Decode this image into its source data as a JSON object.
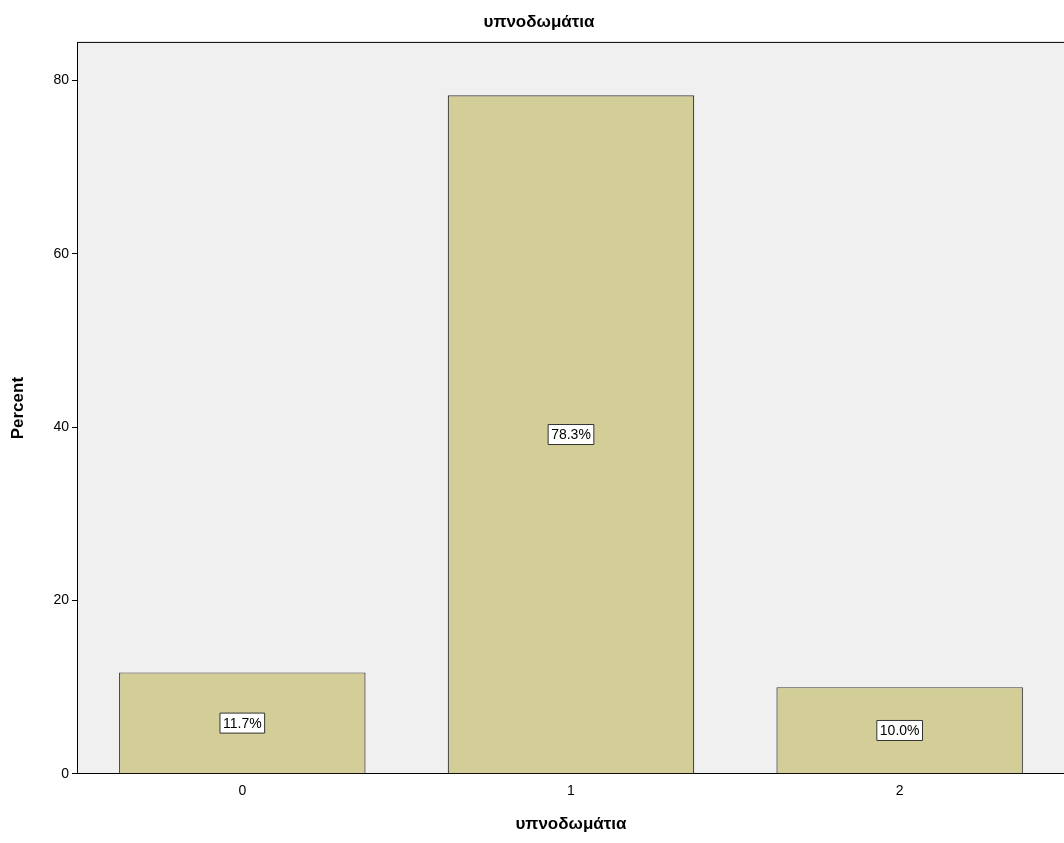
{
  "chart_data": {
    "type": "bar",
    "title": "υπνοδωμάτια",
    "xlabel": "υπνοδωμάτια",
    "ylabel": "Percent",
    "categories": [
      "0",
      "1",
      "2"
    ],
    "values": [
      11.7,
      78.3,
      10.0
    ],
    "color": "#d3ce97",
    "value_labels": [
      "11.7%",
      "78.3%",
      "10.0%"
    ],
    "ylim": [
      0,
      84.4
    ],
    "yticks": [
      0,
      20,
      40,
      60,
      80
    ],
    "grid": false,
    "legend": false
  }
}
